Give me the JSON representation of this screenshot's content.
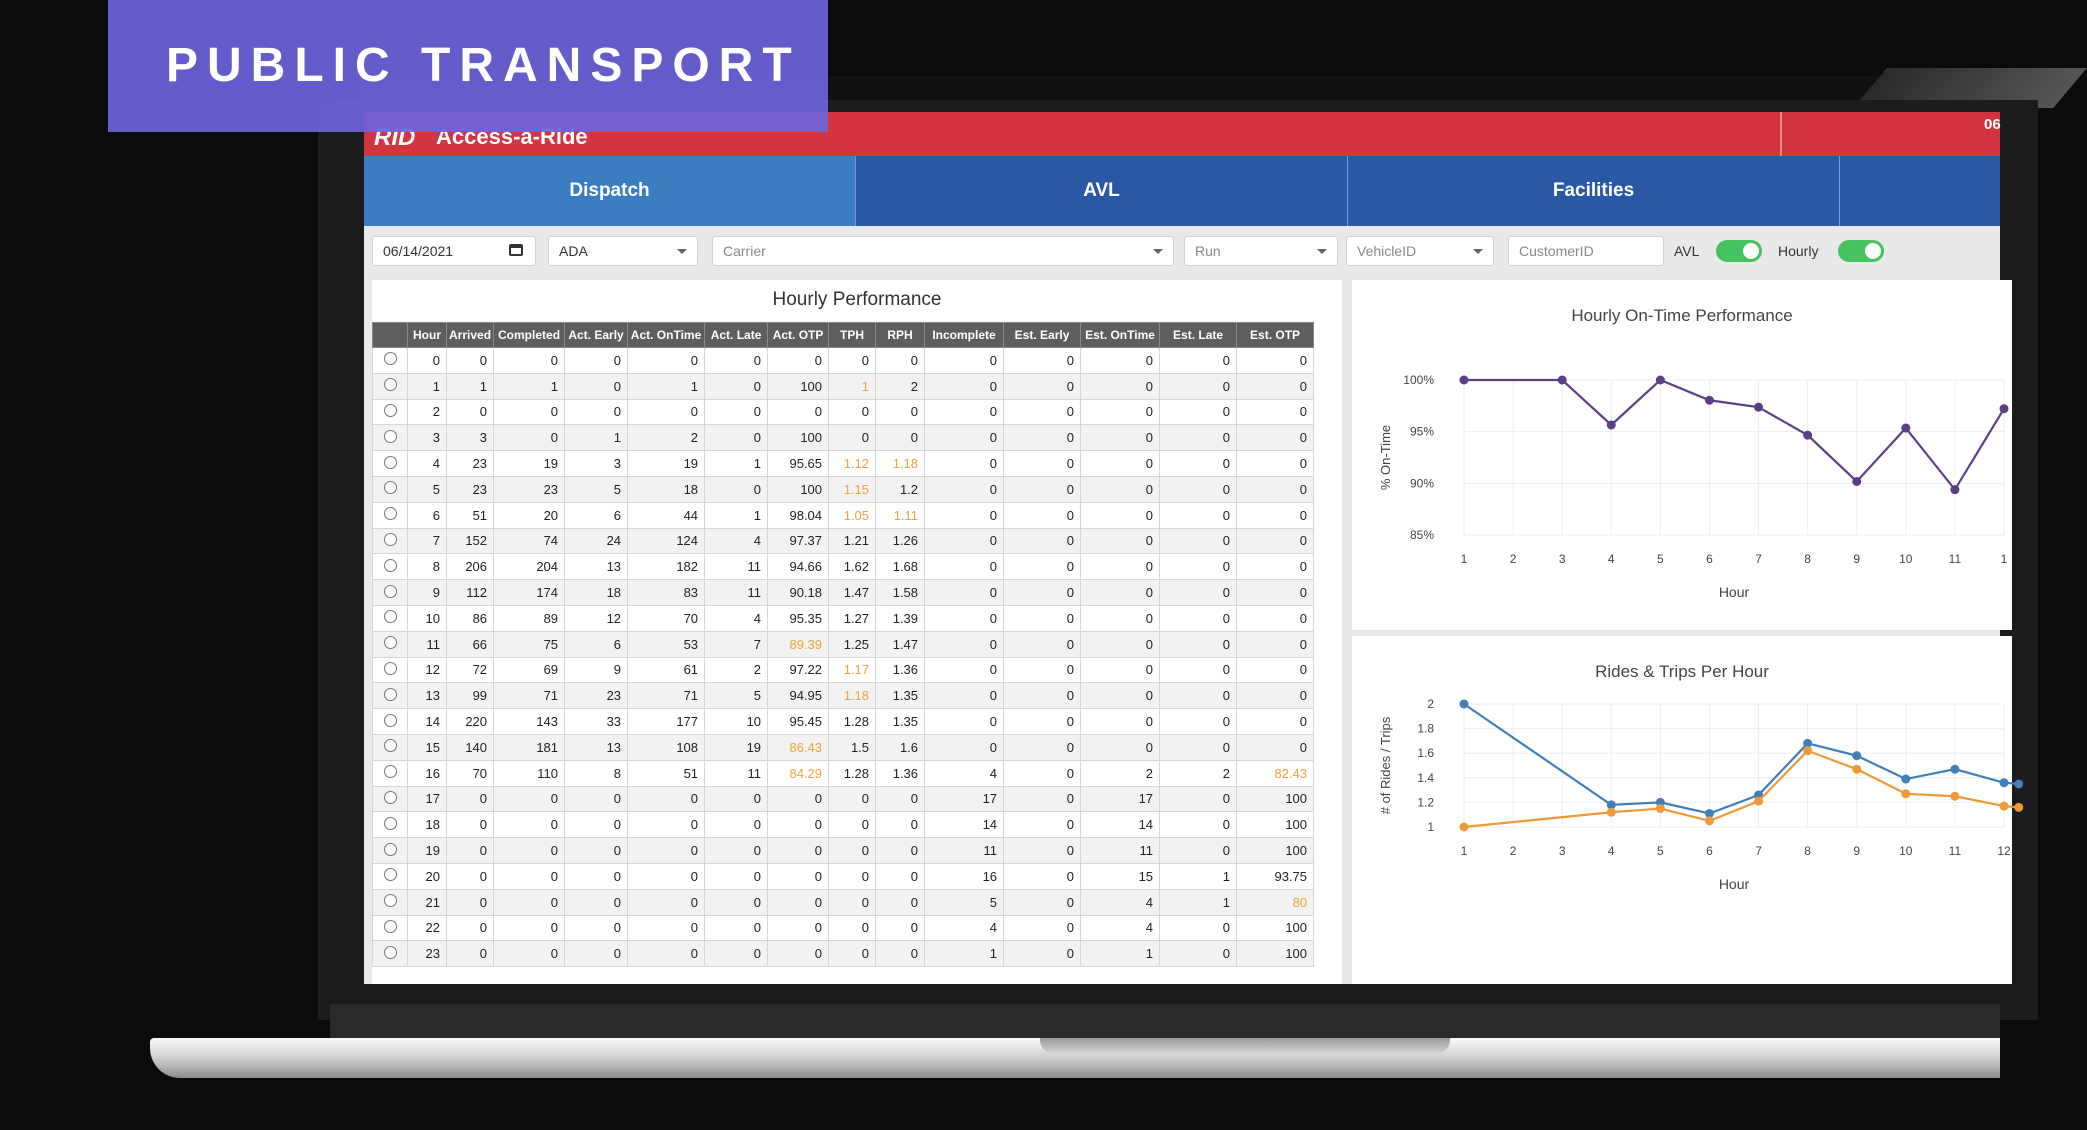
{
  "banner": {
    "title": "PUBLIC TRANSPORT"
  },
  "app": {
    "logo": "RID",
    "name": "Access-a-Ride",
    "header_date": "06"
  },
  "tabs": [
    {
      "label": "Dispatch"
    },
    {
      "label": "AVL"
    },
    {
      "label": "Facilities"
    }
  ],
  "filters": {
    "date": "06/14/2021",
    "mode": "ADA",
    "carrier_placeholder": "Carrier",
    "run_placeholder": "Run",
    "vehicle_placeholder": "VehicleID",
    "customer_placeholder": "CustomerID",
    "avl_label": "AVL",
    "hourly_label": "Hourly"
  },
  "table": {
    "title": "Hourly Performance",
    "columns": [
      "Hour",
      "Arrived",
      "Completed",
      "Act. Early",
      "Act. OnTime",
      "Act. Late",
      "Act. OTP",
      "TPH",
      "RPH",
      "Incomplete",
      "Est. Early",
      "Est. OnTime",
      "Est. Late",
      "Est. OTP"
    ],
    "rows": [
      [
        "0",
        "0",
        "0",
        "0",
        "0",
        "0",
        "0",
        "0",
        "0",
        "0",
        "0",
        "0",
        "0",
        "0"
      ],
      [
        "1",
        "1",
        "1",
        "0",
        "1",
        "0",
        "100",
        "1",
        "2",
        "0",
        "0",
        "0",
        "0",
        "0"
      ],
      [
        "2",
        "0",
        "0",
        "0",
        "0",
        "0",
        "0",
        "0",
        "0",
        "0",
        "0",
        "0",
        "0",
        "0"
      ],
      [
        "3",
        "3",
        "0",
        "1",
        "2",
        "0",
        "100",
        "0",
        "0",
        "0",
        "0",
        "0",
        "0",
        "0"
      ],
      [
        "4",
        "23",
        "19",
        "3",
        "19",
        "1",
        "95.65",
        "1.12",
        "1.18",
        "0",
        "0",
        "0",
        "0",
        "0"
      ],
      [
        "5",
        "23",
        "23",
        "5",
        "18",
        "0",
        "100",
        "1.15",
        "1.2",
        "0",
        "0",
        "0",
        "0",
        "0"
      ],
      [
        "6",
        "51",
        "20",
        "6",
        "44",
        "1",
        "98.04",
        "1.05",
        "1.11",
        "0",
        "0",
        "0",
        "0",
        "0"
      ],
      [
        "7",
        "152",
        "74",
        "24",
        "124",
        "4",
        "97.37",
        "1.21",
        "1.26",
        "0",
        "0",
        "0",
        "0",
        "0"
      ],
      [
        "8",
        "206",
        "204",
        "13",
        "182",
        "11",
        "94.66",
        "1.62",
        "1.68",
        "0",
        "0",
        "0",
        "0",
        "0"
      ],
      [
        "9",
        "112",
        "174",
        "18",
        "83",
        "11",
        "90.18",
        "1.47",
        "1.58",
        "0",
        "0",
        "0",
        "0",
        "0"
      ],
      [
        "10",
        "86",
        "89",
        "12",
        "70",
        "4",
        "95.35",
        "1.27",
        "1.39",
        "0",
        "0",
        "0",
        "0",
        "0"
      ],
      [
        "11",
        "66",
        "75",
        "6",
        "53",
        "7",
        "89.39",
        "1.25",
        "1.47",
        "0",
        "0",
        "0",
        "0",
        "0"
      ],
      [
        "12",
        "72",
        "69",
        "9",
        "61",
        "2",
        "97.22",
        "1.17",
        "1.36",
        "0",
        "0",
        "0",
        "0",
        "0"
      ],
      [
        "13",
        "99",
        "71",
        "23",
        "71",
        "5",
        "94.95",
        "1.18",
        "1.35",
        "0",
        "0",
        "0",
        "0",
        "0"
      ],
      [
        "14",
        "220",
        "143",
        "33",
        "177",
        "10",
        "95.45",
        "1.28",
        "1.35",
        "0",
        "0",
        "0",
        "0",
        "0"
      ],
      [
        "15",
        "140",
        "181",
        "13",
        "108",
        "19",
        "86.43",
        "1.5",
        "1.6",
        "0",
        "0",
        "0",
        "0",
        "0"
      ],
      [
        "16",
        "70",
        "110",
        "8",
        "51",
        "11",
        "84.29",
        "1.28",
        "1.36",
        "4",
        "0",
        "2",
        "2",
        "82.43"
      ],
      [
        "17",
        "0",
        "0",
        "0",
        "0",
        "0",
        "0",
        "0",
        "0",
        "17",
        "0",
        "17",
        "0",
        "100"
      ],
      [
        "18",
        "0",
        "0",
        "0",
        "0",
        "0",
        "0",
        "0",
        "0",
        "14",
        "0",
        "14",
        "0",
        "100"
      ],
      [
        "19",
        "0",
        "0",
        "0",
        "0",
        "0",
        "0",
        "0",
        "0",
        "11",
        "0",
        "11",
        "0",
        "100"
      ],
      [
        "20",
        "0",
        "0",
        "0",
        "0",
        "0",
        "0",
        "0",
        "0",
        "16",
        "0",
        "15",
        "1",
        "93.75"
      ],
      [
        "21",
        "0",
        "0",
        "0",
        "0",
        "0",
        "0",
        "0",
        "0",
        "5",
        "0",
        "4",
        "1",
        "80"
      ],
      [
        "22",
        "0",
        "0",
        "0",
        "0",
        "0",
        "0",
        "0",
        "0",
        "4",
        "0",
        "4",
        "0",
        "100"
      ],
      [
        "23",
        "0",
        "0",
        "0",
        "0",
        "0",
        "0",
        "0",
        "0",
        "1",
        "0",
        "1",
        "0",
        "100"
      ]
    ],
    "highlights": [
      [
        1,
        7
      ],
      [
        4,
        7
      ],
      [
        4,
        8
      ],
      [
        5,
        7
      ],
      [
        6,
        7
      ],
      [
        6,
        8
      ],
      [
        11,
        6
      ],
      [
        12,
        7
      ],
      [
        13,
        7
      ],
      [
        15,
        6
      ],
      [
        16,
        6
      ],
      [
        16,
        13
      ],
      [
        21,
        13
      ]
    ],
    "warn_color": "#f0a33a"
  },
  "chart_data": [
    {
      "type": "line",
      "title": "Hourly On-Time Performance",
      "xlabel": "Hour",
      "ylabel": "% On-Time",
      "x_ticks": [
        "1",
        "2",
        "3",
        "4",
        "5",
        "6",
        "7",
        "8",
        "9",
        "10",
        "11",
        "1"
      ],
      "y_ticks": [
        "100%",
        "95%",
        "90%",
        "85%"
      ],
      "ylim": [
        85,
        100
      ],
      "series": [
        {
          "color": "#5b3f85",
          "x": [
            1,
            3,
            4,
            5,
            6,
            7,
            8,
            9,
            10,
            11,
            12
          ],
          "values": [
            100,
            100,
            95.65,
            100,
            98.04,
            97.37,
            94.66,
            90.18,
            95.35,
            89.39,
            97.22
          ]
        }
      ]
    },
    {
      "type": "line",
      "title": "Rides & Trips Per Hour",
      "xlabel": "Hour",
      "ylabel": "# of Rides / Trips",
      "x_ticks": [
        "1",
        "2",
        "3",
        "4",
        "5",
        "6",
        "7",
        "8",
        "9",
        "10",
        "11",
        "12"
      ],
      "y_ticks": [
        "2",
        "1.8",
        "1.6",
        "1.4",
        "1.2",
        "1"
      ],
      "ylim": [
        1,
        2
      ],
      "series": [
        {
          "color": "#3f7fba",
          "x": [
            1,
            4,
            5,
            6,
            7,
            8,
            9,
            10,
            11,
            12,
            12.3
          ],
          "values": [
            2,
            1.18,
            1.2,
            1.11,
            1.26,
            1.68,
            1.58,
            1.39,
            1.47,
            1.36,
            1.35
          ]
        },
        {
          "color": "#f0993a",
          "x": [
            1,
            4,
            5,
            6,
            7,
            8,
            9,
            10,
            11,
            12,
            12.3
          ],
          "values": [
            1,
            1.12,
            1.15,
            1.05,
            1.21,
            1.62,
            1.47,
            1.27,
            1.25,
            1.17,
            1.16
          ]
        }
      ]
    }
  ]
}
